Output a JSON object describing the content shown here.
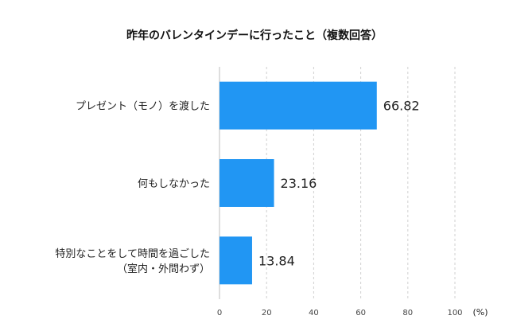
{
  "chart_data": {
    "type": "bar",
    "orientation": "horizontal",
    "title": "昨年のバレンタインデーに行ったこと（複数回答）",
    "categories": [
      [
        "プレゼント（モノ）を渡した"
      ],
      [
        "何もしなかった"
      ],
      [
        "特別なことをして時間を過ごした",
        "（室内・外問わず）"
      ]
    ],
    "values": [
      66.82,
      23.16,
      13.84
    ],
    "value_labels": [
      "66.82",
      "23.16",
      "13.84"
    ],
    "xlim": [
      0,
      100
    ],
    "xticks": [
      0,
      20,
      40,
      60,
      80,
      100
    ],
    "xtick_labels": [
      "0",
      "20",
      "40",
      "60",
      "80",
      "100"
    ],
    "unit": "(%)",
    "grid": "vertical-dashed",
    "bar_color": "#2196F3"
  }
}
